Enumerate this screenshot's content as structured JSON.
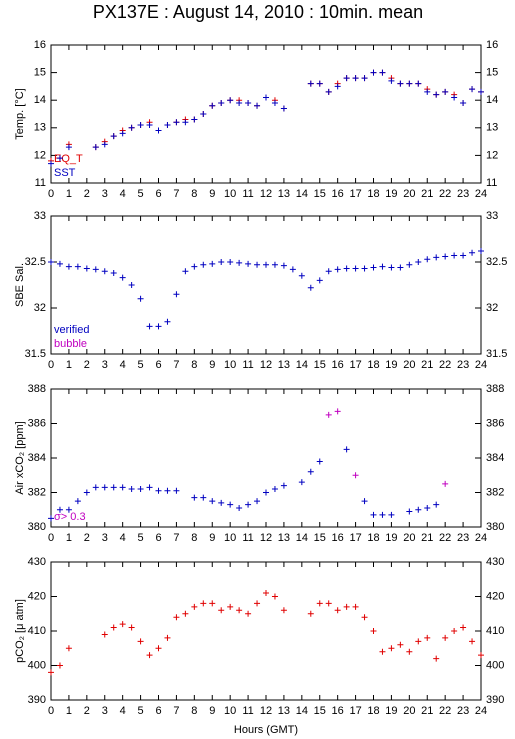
{
  "title": "PX137E : August 14, 2010 : 10min. mean",
  "x_label": "Hours (GMT)",
  "chart_data": [
    {
      "type": "scatter",
      "y_label": "Temp. [°C]",
      "xlim": [
        0,
        24
      ],
      "xticks": [
        0,
        1,
        2,
        3,
        4,
        5,
        6,
        7,
        8,
        9,
        10,
        11,
        12,
        13,
        14,
        15,
        16,
        17,
        18,
        19,
        20,
        21,
        22,
        23,
        24
      ],
      "ylim": [
        11,
        16
      ],
      "yticks": [
        11,
        12,
        13,
        14,
        15,
        16
      ],
      "x": [
        0,
        0.5,
        1,
        1.5,
        2,
        2.5,
        3,
        3.5,
        4,
        4.5,
        5,
        5.5,
        6,
        6.5,
        7,
        7.5,
        8,
        8.5,
        9,
        9.5,
        10,
        10.5,
        11,
        11.5,
        12,
        12.5,
        13,
        13.5,
        14,
        14.5,
        15,
        15.5,
        16,
        16.5,
        17,
        17.5,
        18,
        18.5,
        19,
        19.5,
        20,
        20.5,
        21,
        21.5,
        22,
        22.5,
        23,
        23.5,
        24
      ],
      "series": [
        {
          "name": "EQ_T",
          "color": "#e00000",
          "values": [
            11.8,
            11.9,
            12.4,
            null,
            null,
            12.3,
            12.5,
            12.7,
            12.9,
            13.0,
            13.1,
            13.2,
            12.9,
            13.1,
            13.2,
            13.3,
            13.3,
            13.5,
            13.8,
            13.9,
            14.0,
            14.0,
            13.9,
            13.8,
            14.1,
            14.0,
            13.7,
            null,
            null,
            14.6,
            14.6,
            14.3,
            14.6,
            14.8,
            14.8,
            14.8,
            15.0,
            15.0,
            14.8,
            14.6,
            14.6,
            14.6,
            14.4,
            14.2,
            14.3,
            14.2,
            13.9,
            14.4,
            14.3
          ]
        },
        {
          "name": "SST",
          "color": "#0000c0",
          "values": [
            11.7,
            11.9,
            12.3,
            null,
            null,
            12.3,
            12.4,
            12.7,
            12.8,
            13.0,
            13.1,
            13.1,
            12.9,
            13.1,
            13.2,
            13.2,
            13.3,
            13.5,
            13.8,
            13.9,
            14.0,
            13.9,
            13.9,
            13.8,
            14.1,
            13.9,
            13.7,
            null,
            null,
            14.6,
            14.6,
            14.3,
            14.5,
            14.8,
            14.8,
            14.8,
            15.0,
            15.0,
            14.7,
            14.6,
            14.6,
            14.6,
            14.3,
            14.2,
            14.3,
            14.1,
            13.9,
            14.4,
            14.3
          ]
        }
      ]
    },
    {
      "type": "scatter",
      "y_label": "SBE Sal.",
      "xlim": [
        0,
        24
      ],
      "xticks": [
        0,
        1,
        2,
        3,
        4,
        5,
        6,
        7,
        8,
        9,
        10,
        11,
        12,
        13,
        14,
        15,
        16,
        17,
        18,
        19,
        20,
        21,
        22,
        23,
        24
      ],
      "ylim": [
        31.5,
        33
      ],
      "yticks": [
        31.5,
        32,
        32.5,
        33
      ],
      "x": [
        0,
        0.5,
        1,
        1.5,
        2,
        2.5,
        3,
        3.5,
        4,
        4.5,
        5,
        5.5,
        6,
        6.5,
        7,
        7.5,
        8,
        8.5,
        9,
        9.5,
        10,
        10.5,
        11,
        11.5,
        12,
        12.5,
        13,
        13.5,
        14,
        14.5,
        15,
        15.5,
        16,
        16.5,
        17,
        17.5,
        18,
        18.5,
        19,
        19.5,
        20,
        20.5,
        21,
        21.5,
        22,
        22.5,
        23,
        23.5,
        24
      ],
      "series": [
        {
          "name": "verified",
          "color": "#0000c0",
          "values": [
            32.5,
            32.48,
            32.45,
            32.45,
            32.43,
            32.42,
            32.4,
            32.38,
            32.33,
            32.25,
            32.1,
            31.8,
            31.8,
            31.85,
            32.15,
            32.4,
            32.45,
            32.47,
            32.48,
            32.5,
            32.5,
            32.49,
            32.48,
            32.47,
            32.47,
            32.47,
            32.46,
            32.42,
            32.35,
            32.22,
            32.3,
            32.4,
            32.42,
            32.43,
            32.43,
            32.43,
            32.44,
            32.45,
            32.44,
            32.44,
            32.47,
            32.5,
            32.53,
            32.55,
            32.56,
            32.57,
            32.57,
            32.6,
            32.62
          ]
        },
        {
          "name": "bubble",
          "color": "#c000c0",
          "values": [
            null,
            null,
            null,
            null,
            null,
            null,
            null,
            null,
            null,
            null,
            null,
            null,
            null,
            null,
            null,
            null,
            null,
            null,
            null,
            null,
            null,
            null,
            null,
            null,
            null,
            null,
            null,
            null,
            null,
            null,
            null,
            null,
            null,
            null,
            null,
            null,
            null,
            null,
            null,
            null,
            null,
            null,
            null,
            null,
            null,
            null,
            null,
            null,
            null
          ]
        }
      ]
    },
    {
      "type": "scatter",
      "y_label": "Air xCO₂ [ppm]",
      "xlim": [
        0,
        24
      ],
      "xticks": [
        0,
        1,
        2,
        3,
        4,
        5,
        6,
        7,
        8,
        9,
        10,
        11,
        12,
        13,
        14,
        15,
        16,
        17,
        18,
        19,
        20,
        21,
        22,
        23,
        24
      ],
      "ylim": [
        380,
        388
      ],
      "yticks": [
        380,
        382,
        384,
        386,
        388
      ],
      "x": [
        0,
        0.5,
        1,
        1.5,
        2,
        2.5,
        3,
        3.5,
        4,
        4.5,
        5,
        5.5,
        6,
        6.5,
        7,
        7.5,
        8,
        8.5,
        9,
        9.5,
        10,
        10.5,
        11,
        11.5,
        12,
        12.5,
        13,
        13.5,
        14,
        14.5,
        15,
        15.5,
        16,
        16.5,
        17,
        17.5,
        18,
        18.5,
        19,
        19.5,
        20,
        20.5,
        21,
        21.5,
        22,
        22.5,
        23,
        23.5,
        24
      ],
      "series": [
        {
          "color": "#0000c0",
          "values": [
            380.5,
            381,
            381,
            381.5,
            382,
            382.3,
            382.3,
            382.3,
            382.3,
            382.2,
            382.2,
            382.3,
            382.1,
            382.1,
            382.1,
            null,
            381.7,
            381.7,
            381.5,
            381.4,
            381.3,
            381.1,
            381.3,
            381.5,
            382,
            382.2,
            382.4,
            null,
            382.6,
            383.2,
            383.8,
            null,
            null,
            384.5,
            null,
            381.5,
            380.7,
            380.7,
            380.7,
            null,
            380.9,
            381,
            381.1,
            381.3,
            null,
            null,
            null,
            null,
            null
          ]
        },
        {
          "name": "σ> 0.3",
          "color": "#c000c0",
          "values": [
            null,
            null,
            null,
            null,
            null,
            null,
            null,
            null,
            null,
            null,
            null,
            null,
            null,
            null,
            null,
            null,
            null,
            null,
            null,
            null,
            null,
            null,
            null,
            null,
            null,
            null,
            null,
            null,
            null,
            null,
            null,
            386.5,
            386.7,
            null,
            383,
            null,
            null,
            null,
            null,
            null,
            null,
            null,
            null,
            null,
            382.5,
            null,
            null,
            null,
            null
          ]
        }
      ]
    },
    {
      "type": "scatter",
      "y_label": "pCO₂ [μ atm]",
      "xlim": [
        0,
        24
      ],
      "xticks": [
        0,
        1,
        2,
        3,
        4,
        5,
        6,
        7,
        8,
        9,
        10,
        11,
        12,
        13,
        14,
        15,
        16,
        17,
        18,
        19,
        20,
        21,
        22,
        23,
        24
      ],
      "ylim": [
        390,
        430
      ],
      "yticks": [
        390,
        400,
        410,
        420,
        430
      ],
      "x": [
        0,
        0.5,
        1,
        1.5,
        2,
        2.5,
        3,
        3.5,
        4,
        4.5,
        5,
        5.5,
        6,
        6.5,
        7,
        7.5,
        8,
        8.5,
        9,
        9.5,
        10,
        10.5,
        11,
        11.5,
        12,
        12.5,
        13,
        13.5,
        14,
        14.5,
        15,
        15.5,
        16,
        16.5,
        17,
        17.5,
        18,
        18.5,
        19,
        19.5,
        20,
        20.5,
        21,
        21.5,
        22,
        22.5,
        23,
        23.5,
        24
      ],
      "series": [
        {
          "color": "#e00000",
          "values": [
            398,
            400,
            405,
            null,
            null,
            null,
            409,
            411,
            412,
            411,
            407,
            403,
            405,
            408,
            414,
            415,
            417,
            418,
            418,
            416,
            417,
            416,
            415,
            418,
            421,
            420,
            416,
            null,
            null,
            415,
            418,
            418,
            416,
            417,
            417,
            414,
            410,
            404,
            405,
            406,
            404,
            407,
            408,
            402,
            408,
            410,
            411,
            407,
            403
          ]
        }
      ]
    }
  ]
}
